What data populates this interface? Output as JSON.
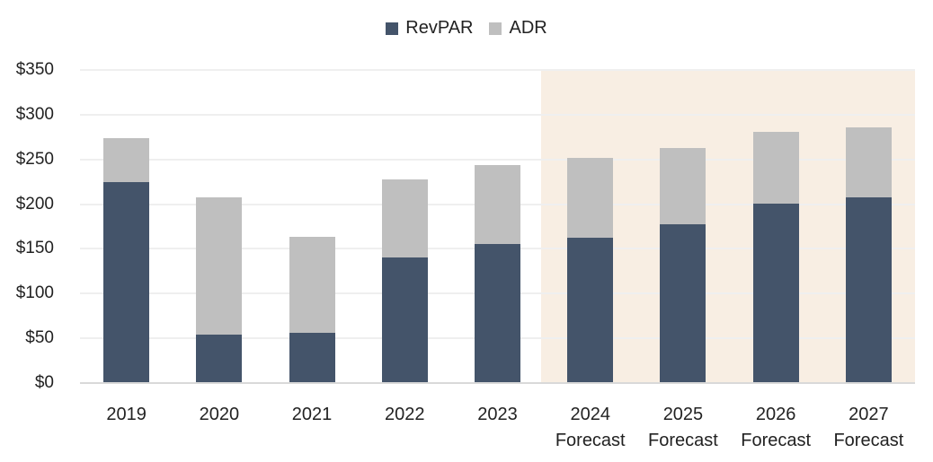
{
  "chart_data": {
    "type": "bar",
    "stacked": true,
    "title": "",
    "xlabel": "",
    "ylabel": "",
    "categories": [
      "2019",
      "2020",
      "2021",
      "2022",
      "2023",
      "2024 Forecast",
      "2025 Forecast",
      "2026 Forecast",
      "2027 Forecast"
    ],
    "category_lines": [
      [
        "2019"
      ],
      [
        "2020"
      ],
      [
        "2021"
      ],
      [
        "2022"
      ],
      [
        "2023"
      ],
      [
        "2024",
        "Forecast"
      ],
      [
        "2025",
        "Forecast"
      ],
      [
        "2026",
        "Forecast"
      ],
      [
        "2027",
        "Forecast"
      ]
    ],
    "series": [
      {
        "name": "RevPAR",
        "color": "#44546a",
        "values": [
          225,
          54,
          56,
          140,
          155,
          162,
          178,
          201,
          208
        ]
      },
      {
        "name": "ADR",
        "color": "#bfbfbf",
        "values": [
          274,
          208,
          163,
          228,
          244,
          252,
          263,
          281,
          286
        ]
      }
    ],
    "ylim": [
      0,
      350
    ],
    "yticks": [
      "$0",
      "$50",
      "$100",
      "$150",
      "$200",
      "$250",
      "$300",
      "$350"
    ],
    "ytick_values": [
      0,
      50,
      100,
      150,
      200,
      250,
      300,
      350
    ],
    "grid": true,
    "legend_position": "top",
    "forecast_shading": {
      "from_index": 5,
      "to_index": 8,
      "color": "#f8eee3"
    },
    "notes": "ADR and RevPAR plotted overlapping from zero (ADR bar total height = ADR value)"
  },
  "legend": {
    "items": [
      {
        "label": "RevPAR",
        "color": "#44546a"
      },
      {
        "label": "ADR",
        "color": "#bfbfbf"
      }
    ]
  }
}
